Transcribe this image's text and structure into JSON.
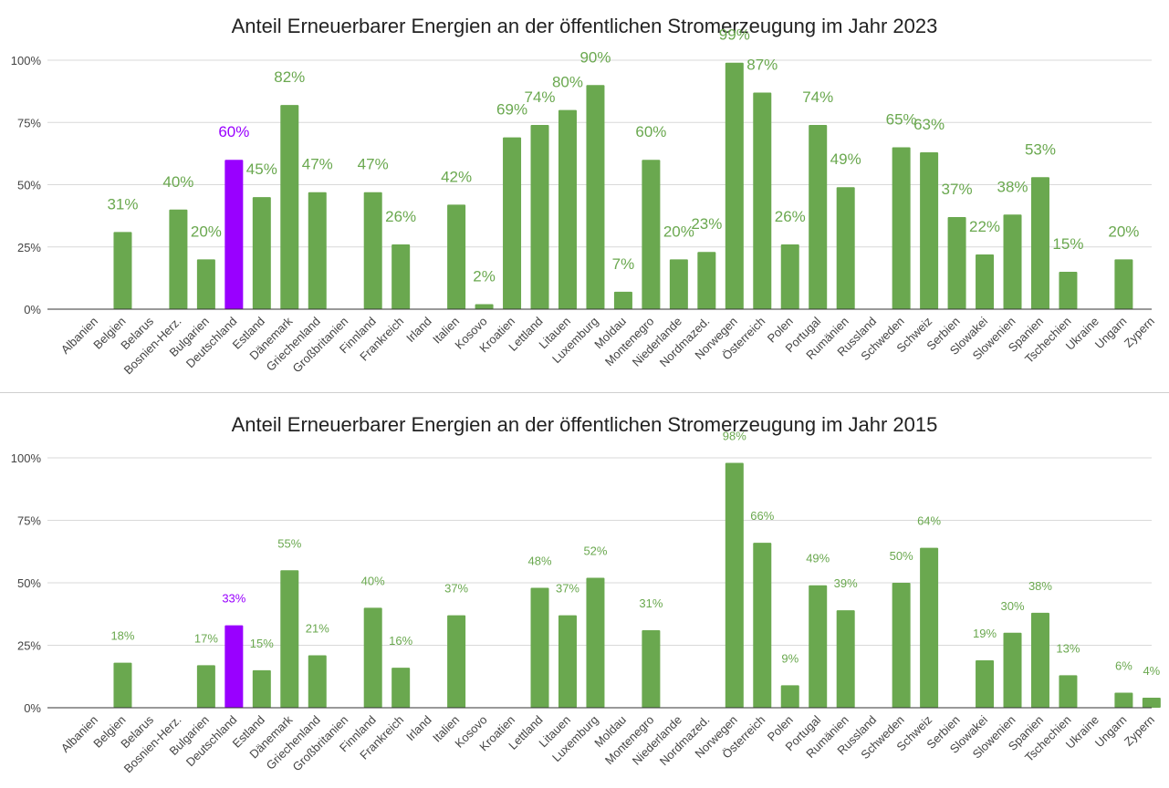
{
  "colors": {
    "bar": "#6aa84f",
    "highlight": "#9900ff",
    "grid": "#d9d9d9",
    "axis": "#333333",
    "label": "#444444"
  },
  "chart_data": [
    {
      "type": "bar",
      "title": "Anteil Erneuerbarer Energien an der öffentlichen Stromerzeugung im Jahr 2023",
      "xlabel": "",
      "ylabel": "",
      "ylim": [
        0,
        100
      ],
      "yticks": [
        "0%",
        "25%",
        "50%",
        "75%",
        "100%"
      ],
      "grid": true,
      "highlight_category": "Deutschland",
      "categories": [
        "Albanien",
        "Belgien",
        "Belarus",
        "Bosnien-Herz.",
        "Bulgarien",
        "Deutschland",
        "Estland",
        "Dänemark",
        "Griechenland",
        "Großbritanien",
        "Finnland",
        "Frankreich",
        "Irland",
        "Italien",
        "Kosovo",
        "Kroatien",
        "Lettland",
        "Litauen",
        "Luxemburg",
        "Moldau",
        "Montenegro",
        "Niederlande",
        "Nordmazed.",
        "Norwegen",
        "Österreich",
        "Polen",
        "Portugal",
        "Rumänien",
        "Russland",
        "Schweden",
        "Schweiz",
        "Serbien",
        "Slowakei",
        "Slowenien",
        "Spanien",
        "Tschechien",
        "Ukraine",
        "Ungarn",
        "Zypern"
      ],
      "values": [
        null,
        31,
        null,
        40,
        20,
        60,
        45,
        82,
        47,
        null,
        47,
        26,
        null,
        42,
        2,
        69,
        74,
        80,
        90,
        7,
        60,
        20,
        23,
        99,
        87,
        26,
        74,
        49,
        null,
        65,
        63,
        37,
        22,
        38,
        53,
        15,
        null,
        20,
        null
      ],
      "labels": [
        "",
        "31%",
        "",
        "40%",
        "20%",
        "60%",
        "45%",
        "82%",
        "47%",
        "",
        "47%",
        "26%",
        "",
        "42%",
        "2%",
        "69%",
        "74%",
        "80%",
        "90%",
        "7%",
        "60%",
        "20%",
        "23%",
        "99%",
        "87%",
        "26%",
        "74%",
        "49%",
        "",
        "65%",
        "63%",
        "37%",
        "22%",
        "38%",
        "53%",
        "15%",
        "",
        "20%",
        ""
      ]
    },
    {
      "type": "bar",
      "title": "Anteil Erneuerbarer Energien an der öffentlichen Stromerzeugung im Jahr 2015",
      "xlabel": "",
      "ylabel": "",
      "ylim": [
        0,
        100
      ],
      "yticks": [
        "0%",
        "25%",
        "50%",
        "75%",
        "100%"
      ],
      "grid": true,
      "highlight_category": "Deutschland",
      "categories": [
        "Albanien",
        "Belgien",
        "Belarus",
        "Bosnien-Herz.",
        "Bulgarien",
        "Deutschland",
        "Estland",
        "Dänemark",
        "Griechenland",
        "Großbritanien",
        "Finnland",
        "Frankreich",
        "Irland",
        "Italien",
        "Kosovo",
        "Kroatien",
        "Lettland",
        "Litauen",
        "Luxemburg",
        "Moldau",
        "Montenegro",
        "Niederlande",
        "Nordmazed.",
        "Norwegen",
        "Österreich",
        "Polen",
        "Portugal",
        "Rumänien",
        "Russland",
        "Schweden",
        "Schweiz",
        "Serbien",
        "Slowakei",
        "Slowenien",
        "Spanien",
        "Tschechien",
        "Ukraine",
        "Ungarn",
        "Zypern"
      ],
      "values": [
        null,
        18,
        null,
        null,
        17,
        33,
        15,
        55,
        21,
        null,
        40,
        16,
        null,
        37,
        null,
        null,
        48,
        37,
        52,
        null,
        31,
        null,
        null,
        98,
        66,
        9,
        49,
        39,
        null,
        50,
        64,
        null,
        19,
        30,
        38,
        13,
        null,
        6,
        4
      ],
      "labels": [
        "",
        "18%",
        "",
        "",
        "17%",
        "33%",
        "15%",
        "55%",
        "21%",
        "",
        "40%",
        "16%",
        "",
        "37%",
        "",
        "",
        "48%",
        "37%",
        "52%",
        "",
        "31%",
        "",
        "",
        "98%",
        "66%",
        "9%",
        "49%",
        "39%",
        "",
        "50%",
        "64%",
        "",
        "19%",
        "30%",
        "38%",
        "13%",
        "",
        "6%",
        "4%"
      ]
    }
  ]
}
